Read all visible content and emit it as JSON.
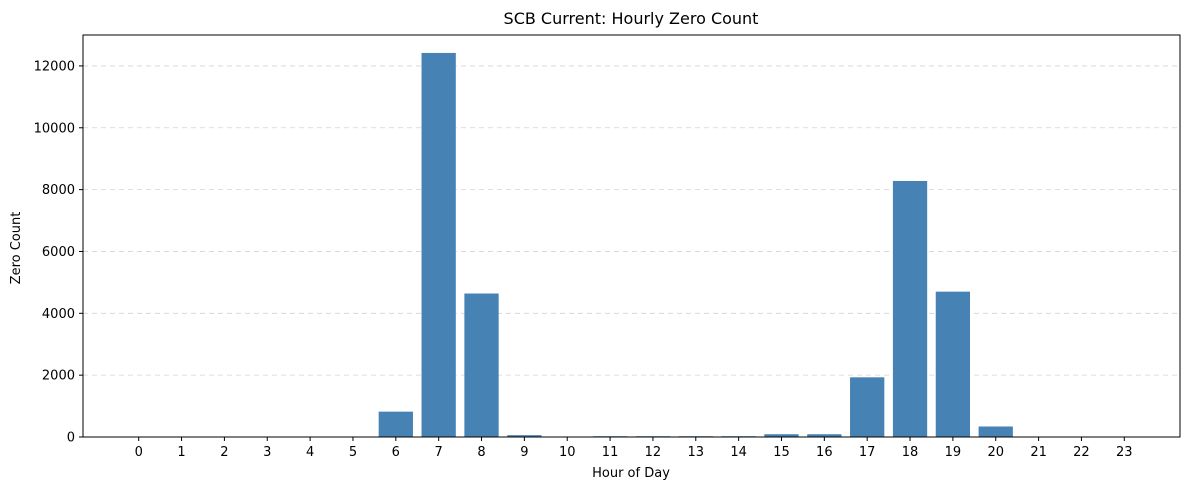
{
  "chart_data": {
    "type": "bar",
    "title": "SCB Current: Hourly Zero Count",
    "xlabel": "Hour of Day",
    "ylabel": "Zero Count",
    "categories": [
      "0",
      "1",
      "2",
      "3",
      "4",
      "5",
      "6",
      "7",
      "8",
      "9",
      "10",
      "11",
      "12",
      "13",
      "14",
      "15",
      "16",
      "17",
      "18",
      "19",
      "20",
      "21",
      "22",
      "23"
    ],
    "values": [
      0,
      0,
      0,
      0,
      0,
      0,
      820,
      12420,
      4640,
      60,
      0,
      25,
      25,
      25,
      25,
      90,
      90,
      1930,
      8280,
      4700,
      340,
      0,
      0,
      0
    ],
    "ylim": [
      0,
      13000
    ],
    "yticks": [
      0,
      2000,
      4000,
      6000,
      8000,
      10000,
      12000
    ],
    "ytick_labels": [
      "0",
      "2000",
      "4000",
      "6000",
      "8000",
      "10000",
      "12000"
    ],
    "grid": "y-dashed",
    "bar_color": "#4682b4"
  }
}
